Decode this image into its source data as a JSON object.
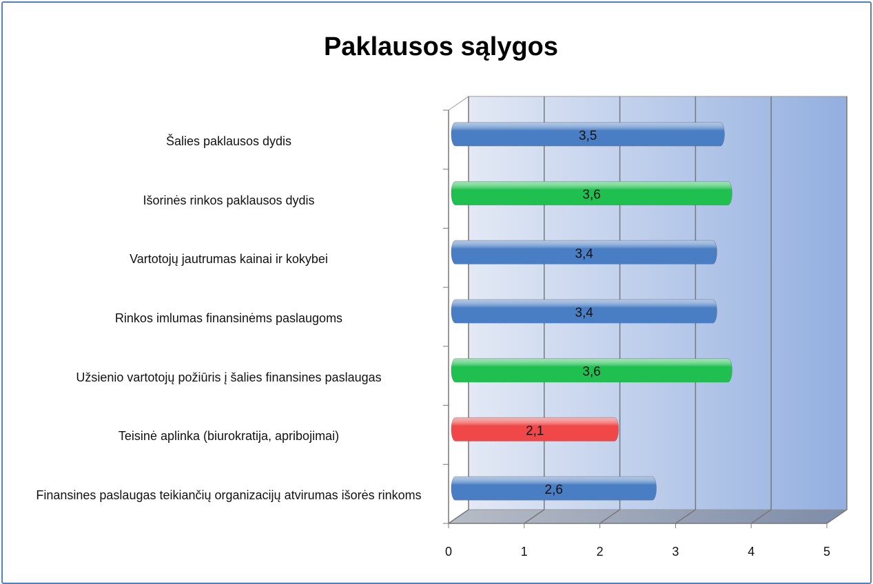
{
  "chart_data": {
    "type": "bar",
    "orientation": "horizontal",
    "title": "Paklausos sąlygos",
    "categories": [
      "Šalies paklausos dydis",
      "Išorinės rinkos paklausos dydis",
      "Vartotojų jautrumas kainai ir kokybei",
      "Rinkos imlumas finansinėms paslaugoms",
      "Užsienio vartotojų požiūris į šalies finansines paslaugas",
      "Teisinė aplinka (biurokratija, apribojimai)",
      "Finansines paslaugas teikiančių organizacijų atvirumas išorės rinkoms"
    ],
    "values": [
      3.5,
      3.6,
      3.4,
      3.4,
      3.6,
      2.1,
      2.6
    ],
    "value_labels": [
      "3,5",
      "3,6",
      "3,4",
      "3,4",
      "3,6",
      "2,1",
      "2,6"
    ],
    "colors": [
      "#4a7ec4",
      "#1fc050",
      "#4a7ec4",
      "#4a7ec4",
      "#1fc050",
      "#f04848",
      "#4a7ec4"
    ],
    "xlim": [
      0,
      5
    ],
    "xticks": [
      0,
      1,
      2,
      3,
      4,
      5
    ],
    "grid": true
  }
}
